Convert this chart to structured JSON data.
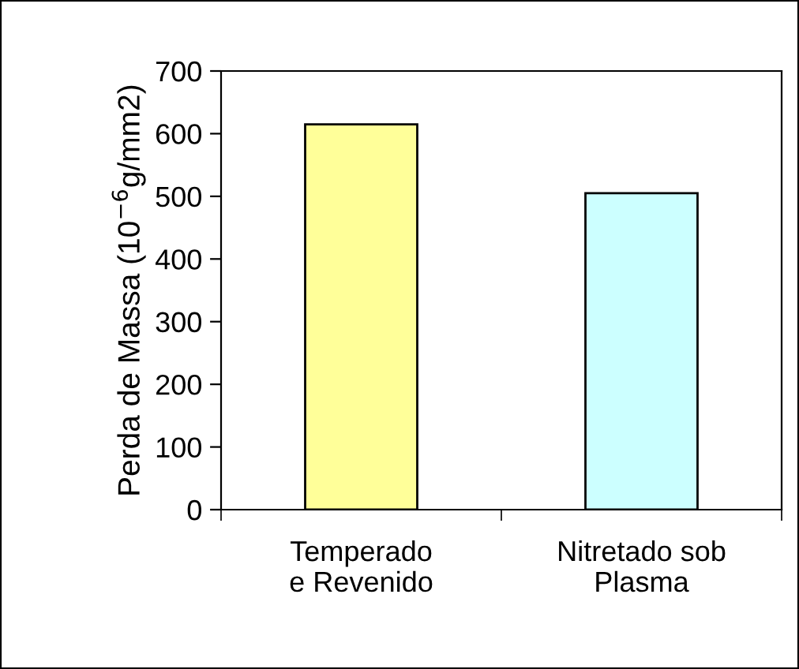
{
  "chart_data": {
    "type": "bar",
    "ylabel": "Perda de Massa (10$^{−6}$g/mm2)",
    "categories": [
      "Temperado\ne Revenido",
      "Nitretado sob\nPlasma"
    ],
    "values": [
      615,
      505
    ],
    "colors": [
      "#ffff99",
      "#ccffff"
    ],
    "ylim": [
      0,
      700
    ],
    "yticks": [
      0,
      100,
      200,
      300,
      400,
      500,
      600,
      700
    ],
    "grid": false,
    "legend": false
  }
}
